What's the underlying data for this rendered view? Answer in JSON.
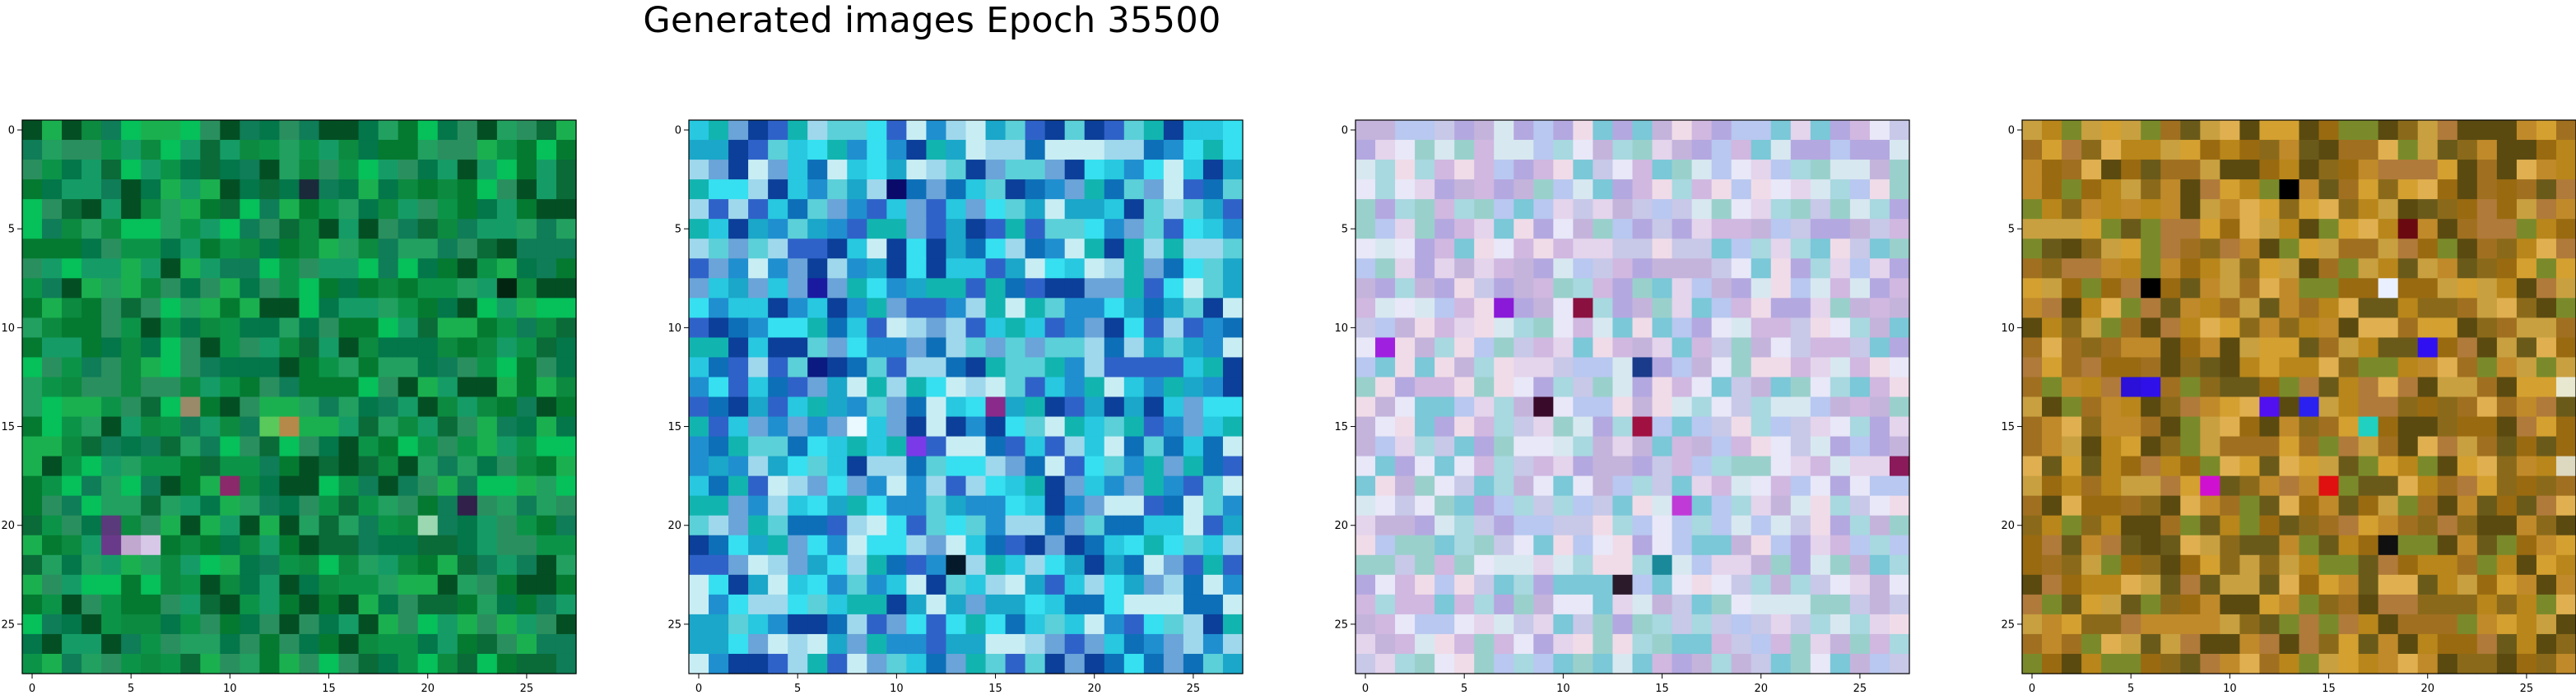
{
  "figure": {
    "suptitle": "Generated images Epoch 35500"
  },
  "chart_data": [
    {
      "type": "heatmap",
      "name": "panel-1",
      "xlim": [
        -0.5,
        27.5
      ],
      "ylim": [
        27.5,
        -0.5
      ],
      "xticks": [
        0,
        5,
        10,
        15,
        20,
        25
      ],
      "yticks": [
        0,
        5,
        10,
        15,
        20,
        25
      ],
      "grid": false,
      "xlabel": "",
      "ylabel": "",
      "palette": [
        "#03764a",
        "#0b9448",
        "#1bb04f",
        "#06c05a",
        "#0c8a3f",
        "#2a8f5e",
        "#0a6a38",
        "#159c66",
        "#034f23",
        "#0f7d57",
        "#22a060",
        "#047a30"
      ],
      "accents": [
        {
          "row": 15,
          "col": 13,
          "color": "#b5894a"
        },
        {
          "row": 15,
          "col": 12,
          "color": "#58c95a"
        },
        {
          "row": 14,
          "col": 8,
          "color": "#9a8a6a"
        },
        {
          "row": 18,
          "col": 10,
          "color": "#8a2a6a"
        },
        {
          "row": 20,
          "col": 4,
          "color": "#5a3a7a"
        },
        {
          "row": 21,
          "col": 4,
          "color": "#6a3a8a"
        },
        {
          "row": 21,
          "col": 6,
          "color": "#d8c8e8"
        },
        {
          "row": 21,
          "col": 5,
          "color": "#c0a8cf"
        },
        {
          "row": 20,
          "col": 20,
          "color": "#9bd7b0"
        },
        {
          "row": 8,
          "col": 24,
          "color": "#022512"
        },
        {
          "row": 3,
          "col": 14,
          "color": "#1a2a3a"
        },
        {
          "row": 19,
          "col": 22,
          "color": "#30204a"
        }
      ]
    },
    {
      "type": "heatmap",
      "name": "panel-2",
      "xlim": [
        -0.5,
        27.5
      ],
      "ylim": [
        27.5,
        -0.5
      ],
      "xticks": [
        0,
        5,
        10,
        15,
        20,
        25
      ],
      "yticks": [
        0,
        5,
        10,
        15,
        20,
        25
      ],
      "grid": false,
      "xlabel": "",
      "ylabel": "",
      "palette": [
        "#1aa7c9",
        "#27c8e0",
        "#0d6fb8",
        "#5bd0d8",
        "#9fd8ec",
        "#1f8fd0",
        "#0b3f99",
        "#36e0f0",
        "#6aa4d8",
        "#12b4b0",
        "#c8eef4",
        "#2f62c8"
      ],
      "accents": [
        {
          "row": 8,
          "col": 6,
          "color": "#1a1aa0"
        },
        {
          "row": 12,
          "col": 6,
          "color": "#0a1a80"
        },
        {
          "row": 22,
          "col": 13,
          "color": "#041a2a"
        },
        {
          "row": 14,
          "col": 15,
          "color": "#8a2a8a"
        },
        {
          "row": 3,
          "col": 10,
          "color": "#0a0a6a"
        },
        {
          "row": 16,
          "col": 11,
          "color": "#7a3ae8"
        },
        {
          "row": 15,
          "col": 8,
          "color": "#eaf8ff"
        }
      ]
    },
    {
      "type": "heatmap",
      "name": "panel-3",
      "xlim": [
        -0.5,
        27.5
      ],
      "ylim": [
        27.5,
        -0.5
      ],
      "xticks": [
        0,
        5,
        10,
        15,
        20,
        25
      ],
      "yticks": [
        0,
        5,
        10,
        15,
        20,
        25
      ],
      "grid": false,
      "xlabel": "",
      "ylabel": "",
      "palette": [
        "#c8c8e8",
        "#e4d4ec",
        "#a8d8e0",
        "#b4a8e0",
        "#d8e8f0",
        "#c4b4dc",
        "#9ad0cc",
        "#e8e8f8",
        "#b8c8f0",
        "#d0b8e0",
        "#7ac8d8",
        "#f0dce8"
      ],
      "accents": [
        {
          "row": 9,
          "col": 7,
          "color": "#8a1ad8"
        },
        {
          "row": 9,
          "col": 11,
          "color": "#8a1040"
        },
        {
          "row": 14,
          "col": 9,
          "color": "#3a0a2a"
        },
        {
          "row": 12,
          "col": 14,
          "color": "#1a3a8a"
        },
        {
          "row": 19,
          "col": 16,
          "color": "#c03ad8"
        },
        {
          "row": 23,
          "col": 13,
          "color": "#2a1a2a"
        },
        {
          "row": 11,
          "col": 1,
          "color": "#a020e0"
        },
        {
          "row": 17,
          "col": 27,
          "color": "#8a1a5a"
        },
        {
          "row": 15,
          "col": 14,
          "color": "#a01040"
        },
        {
          "row": 22,
          "col": 15,
          "color": "#1a8a9a"
        }
      ]
    },
    {
      "type": "heatmap",
      "name": "panel-4",
      "xlim": [
        -0.5,
        27.5
      ],
      "ylim": [
        27.5,
        -0.5
      ],
      "xticks": [
        0,
        5,
        10,
        15,
        20,
        25
      ],
      "yticks": [
        0,
        5,
        10,
        15,
        20,
        25
      ],
      "grid": false,
      "xlabel": "",
      "ylabel": "",
      "palette": [
        "#b8861a",
        "#8a6a1a",
        "#d4a030",
        "#6a5a1a",
        "#c08a2a",
        "#a07020",
        "#e0b050",
        "#7a8a2a",
        "#b07a3a",
        "#9a6a10",
        "#c8a040",
        "#5a4a10"
      ],
      "accents": [
        {
          "row": 13,
          "col": 5,
          "color": "#2a10d8"
        },
        {
          "row": 13,
          "col": 6,
          "color": "#3010e8"
        },
        {
          "row": 14,
          "col": 12,
          "color": "#5010f0"
        },
        {
          "row": 14,
          "col": 14,
          "color": "#2a20f0"
        },
        {
          "row": 18,
          "col": 9,
          "color": "#d010d0"
        },
        {
          "row": 18,
          "col": 15,
          "color": "#e01010"
        },
        {
          "row": 8,
          "col": 6,
          "color": "#000000"
        },
        {
          "row": 3,
          "col": 13,
          "color": "#000000"
        },
        {
          "row": 5,
          "col": 19,
          "color": "#6a0a10"
        },
        {
          "row": 11,
          "col": 20,
          "color": "#3010f0"
        },
        {
          "row": 8,
          "col": 18,
          "color": "#eaf0ff"
        },
        {
          "row": 15,
          "col": 17,
          "color": "#20d0c0"
        },
        {
          "row": 21,
          "col": 18,
          "color": "#101010"
        },
        {
          "row": 13,
          "col": 27,
          "color": "#e8e8d0"
        },
        {
          "row": 17,
          "col": 27,
          "color": "#ddd8c0"
        }
      ]
    }
  ]
}
